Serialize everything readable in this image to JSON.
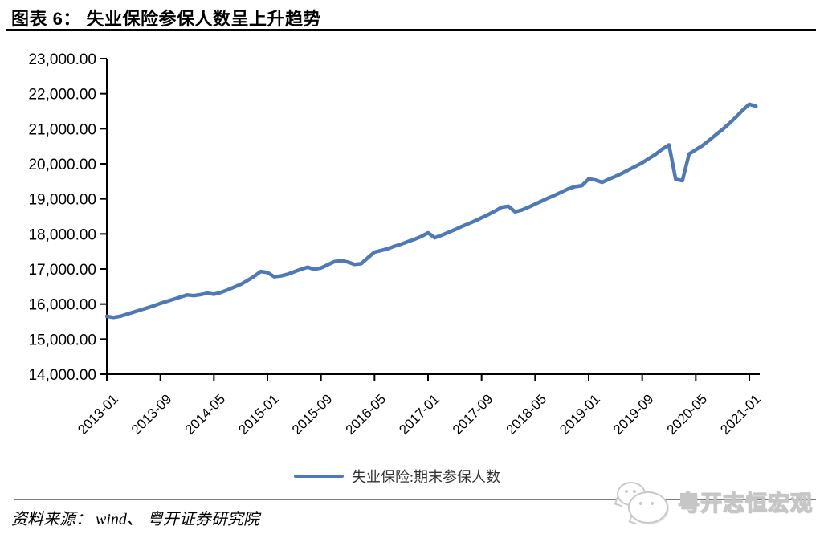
{
  "page": {
    "title": "图表 6： 失业保险参保人数呈上升趋势",
    "source_note": "资料来源： wind、 粤开证券研究院",
    "watermark_text": "粤开志恒宏观"
  },
  "colors": {
    "series_line": "#4E79B8",
    "axis": "#000000",
    "title_rule": "#000000",
    "divider": "#7D7D7D",
    "watermark_gray": "#C9C9C9"
  },
  "legend": {
    "label": "失业保险:期末参保人数"
  },
  "chart_data": {
    "type": "line",
    "title": "失业保险参保人数呈上升趋势",
    "xlabel": "",
    "ylabel": "",
    "ylim": [
      14000,
      23000
    ],
    "y_tick_step": 1000,
    "y_tick_labels": [
      "23,000.00",
      "22,000.00",
      "21,000.00",
      "20,000.00",
      "19,000.00",
      "18,000.00",
      "17,000.00",
      "16,000.00",
      "15,000.00",
      "14,000.00"
    ],
    "x_tick_labels": [
      "2013-01",
      "2013-09",
      "2014-05",
      "2015-01",
      "2015-09",
      "2016-05",
      "2017-01",
      "2017-09",
      "2018-05",
      "2019-01",
      "2019-09",
      "2020-05",
      "2021-01"
    ],
    "x_tick_every_n_months": 8,
    "grid": false,
    "legend_position": "bottom-center",
    "series": [
      {
        "name": "失业保险:期末参保人数",
        "color": "#4E79B8",
        "x": [
          "2013-01",
          "2013-02",
          "2013-03",
          "2013-04",
          "2013-05",
          "2013-06",
          "2013-07",
          "2013-08",
          "2013-09",
          "2013-10",
          "2013-11",
          "2013-12",
          "2014-01",
          "2014-02",
          "2014-03",
          "2014-04",
          "2014-05",
          "2014-06",
          "2014-07",
          "2014-08",
          "2014-09",
          "2014-10",
          "2014-11",
          "2014-12",
          "2015-01",
          "2015-02",
          "2015-03",
          "2015-04",
          "2015-05",
          "2015-06",
          "2015-07",
          "2015-08",
          "2015-09",
          "2015-10",
          "2015-11",
          "2015-12",
          "2016-01",
          "2016-02",
          "2016-03",
          "2016-04",
          "2016-05",
          "2016-06",
          "2016-07",
          "2016-08",
          "2016-09",
          "2016-10",
          "2016-11",
          "2016-12",
          "2017-01",
          "2017-02",
          "2017-03",
          "2017-04",
          "2017-05",
          "2017-06",
          "2017-07",
          "2017-08",
          "2017-09",
          "2017-10",
          "2017-11",
          "2017-12",
          "2018-01",
          "2018-02",
          "2018-03",
          "2018-04",
          "2018-05",
          "2018-06",
          "2018-07",
          "2018-08",
          "2018-09",
          "2018-10",
          "2018-11",
          "2018-12",
          "2019-01",
          "2019-02",
          "2019-03",
          "2019-04",
          "2019-05",
          "2019-06",
          "2019-07",
          "2019-08",
          "2019-09",
          "2019-10",
          "2019-11",
          "2019-12",
          "2020-01",
          "2020-02",
          "2020-03",
          "2020-04",
          "2020-05",
          "2020-06",
          "2020-07",
          "2020-08",
          "2020-09",
          "2020-10",
          "2020-11",
          "2020-12",
          "2021-01",
          "2021-02"
        ],
        "values": [
          15650,
          15620,
          15650,
          15710,
          15770,
          15830,
          15890,
          15950,
          16020,
          16080,
          16140,
          16200,
          16260,
          16240,
          16270,
          16310,
          16280,
          16330,
          16400,
          16480,
          16560,
          16670,
          16790,
          16930,
          16900,
          16780,
          16800,
          16850,
          16920,
          16990,
          17050,
          16990,
          17030,
          17120,
          17210,
          17240,
          17200,
          17130,
          17150,
          17320,
          17480,
          17530,
          17580,
          17650,
          17710,
          17780,
          17850,
          17930,
          18030,
          17890,
          17960,
          18040,
          18120,
          18210,
          18290,
          18370,
          18460,
          18550,
          18650,
          18760,
          18790,
          18630,
          18680,
          18760,
          18850,
          18940,
          19030,
          19110,
          19200,
          19290,
          19350,
          19380,
          19570,
          19540,
          19470,
          19560,
          19640,
          19730,
          19830,
          19930,
          20030,
          20150,
          20270,
          20420,
          20540,
          19560,
          19520,
          20280,
          20400,
          20520,
          20670,
          20830,
          20980,
          21150,
          21330,
          21530,
          21700,
          21640
        ]
      }
    ]
  }
}
